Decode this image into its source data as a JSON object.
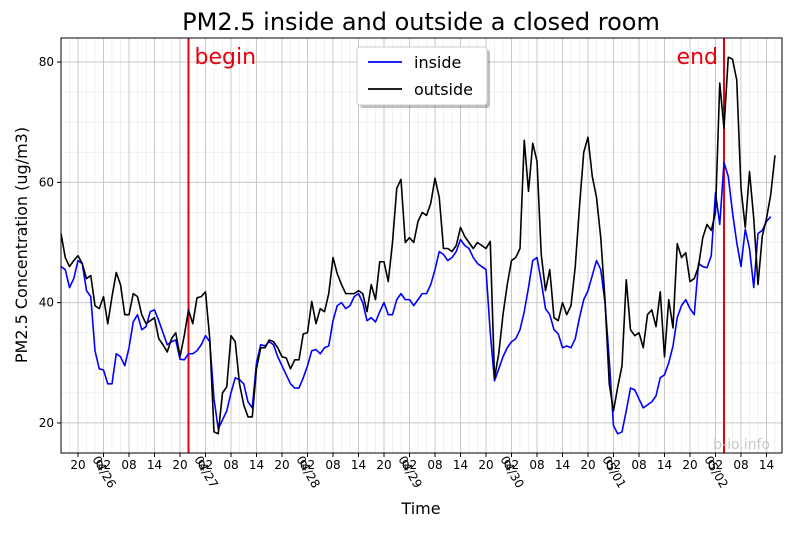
{
  "chart_data": {
    "type": "line",
    "title": "PM2.5 inside and outside a closed room",
    "xlabel": "Time",
    "ylabel": "PM2.5 Concentration (ug/m3)",
    "ylim": [
      15,
      84
    ],
    "yticks": [
      20,
      40,
      60,
      80
    ],
    "grid": true,
    "legend_position": "top-center",
    "x_hour_labels": [
      "20",
      "02",
      "08",
      "14",
      "20",
      "02",
      "08",
      "14",
      "20",
      "02",
      "08",
      "14",
      "20",
      "02",
      "08",
      "14",
      "20",
      "02",
      "08",
      "14",
      "20",
      "02",
      "08",
      "14",
      "20",
      "02",
      "08",
      "14"
    ],
    "x_date_labels": [
      "04/26",
      "04/27",
      "04/28",
      "04/29",
      "04/30",
      "05/01",
      "05/02"
    ],
    "watermark": "b-io.info",
    "markers": [
      {
        "label": "begin",
        "hour": 30,
        "color": "#e8000b"
      },
      {
        "label": "end",
        "hour": 156,
        "color": "#e8000b"
      }
    ],
    "series": [
      {
        "name": "inside",
        "color": "#0000ff",
        "start_hour": 0,
        "step_hours": 1,
        "values": [
          46,
          45.5,
          42.5,
          44,
          47,
          46.5,
          42,
          41,
          32,
          29,
          28.8,
          26.5,
          26.5,
          31.5,
          31,
          29.5,
          32.5,
          36.8,
          38,
          35.5,
          36,
          38.5,
          38.8,
          37,
          35,
          33,
          33.5,
          33.8,
          30.6,
          30.5,
          31.5,
          31.5,
          32,
          33,
          34.5,
          33.5,
          24,
          19,
          20.5,
          22,
          25,
          27.5,
          27.2,
          26.5,
          23.5,
          22.5,
          30,
          33,
          32.8,
          33.5,
          33,
          31,
          29.5,
          28,
          26.5,
          25.8,
          25.8,
          27.5,
          29.5,
          32,
          32.2,
          31.5,
          32.5,
          32.8,
          37,
          39.5,
          40,
          39,
          39.5,
          41,
          41.5,
          40,
          37,
          37.5,
          36.8,
          38.5,
          40,
          38,
          38,
          40.5,
          41.5,
          40.5,
          40.5,
          39.5,
          40.5,
          41.5,
          41.5,
          43,
          45.5,
          48.5,
          48,
          47,
          47.5,
          48.5,
          50.5,
          49.5,
          49,
          47.5,
          46.5,
          46,
          45.5,
          35,
          27,
          29,
          31,
          32.5,
          33.5,
          34,
          35.5,
          38.5,
          42.5,
          47,
          47.5,
          43.5,
          39,
          38,
          35.5,
          34.8,
          32.5,
          32.8,
          32.5,
          34,
          37.5,
          40.5,
          42,
          44.5,
          47,
          45.5,
          40,
          30.5,
          19.5,
          18.2,
          18.5,
          22,
          25.8,
          25.5,
          24,
          22.5,
          23,
          23.5,
          24.5,
          27.5,
          28,
          30,
          32.8,
          37.5,
          39.5,
          40.5,
          39,
          38,
          46.5,
          46,
          45.8,
          47.8,
          58.3,
          53,
          63.3,
          61,
          55,
          50,
          46,
          52.2,
          49,
          42.5,
          51.5,
          52,
          53.5,
          54.3
        ]
      },
      {
        "name": "outside",
        "color": "#000000",
        "start_hour": 0,
        "step_hours": 1,
        "values": [
          51.5,
          47.5,
          46,
          47,
          47.8,
          46.5,
          44,
          44.5,
          39.5,
          39,
          41,
          36.5,
          41,
          45,
          43,
          38,
          38,
          41.5,
          41,
          38,
          36.5,
          37,
          37.5,
          34,
          33,
          31.8,
          34,
          35,
          31,
          34.5,
          38.8,
          36.5,
          40.8,
          41,
          41.8,
          34,
          18.5,
          18.2,
          25,
          26,
          34.5,
          33.5,
          26.5,
          23,
          21,
          21,
          29,
          32.5,
          32.5,
          33.8,
          33.5,
          32.5,
          31,
          30.8,
          29,
          30.5,
          30.5,
          34.8,
          35,
          40.2,
          36.5,
          39,
          38.5,
          41.5,
          47.5,
          44.8,
          43,
          41.5,
          41.5,
          41.5,
          42,
          41.5,
          38.5,
          43,
          40.5,
          46.8,
          46.8,
          43.5,
          50,
          59,
          60.5,
          50,
          50.8,
          50,
          53.5,
          55,
          54.5,
          56.5,
          60.7,
          57.5,
          49,
          49,
          48.5,
          49.5,
          52.5,
          51,
          50,
          49,
          50,
          49.5,
          49,
          50.2,
          27.5,
          31.5,
          38,
          43,
          47,
          47.5,
          49,
          67,
          58.5,
          66.5,
          63.5,
          48,
          42,
          45.5,
          37.5,
          37,
          40,
          38,
          39.5,
          46,
          56,
          65,
          67.5,
          61,
          57.5,
          50.8,
          40.5,
          26.5,
          22,
          26,
          29.5,
          43.8,
          35.5,
          34.5,
          35,
          32.5,
          38,
          38.8,
          36,
          41.8,
          31,
          40.5,
          35.8,
          49.8,
          47.5,
          48.3,
          43.5,
          44,
          46,
          50.8,
          53,
          52,
          55,
          76.5,
          69,
          80.8,
          80.5,
          77,
          59,
          52.5,
          61.8,
          54,
          43,
          51,
          54,
          58,
          64.5
        ]
      }
    ]
  }
}
